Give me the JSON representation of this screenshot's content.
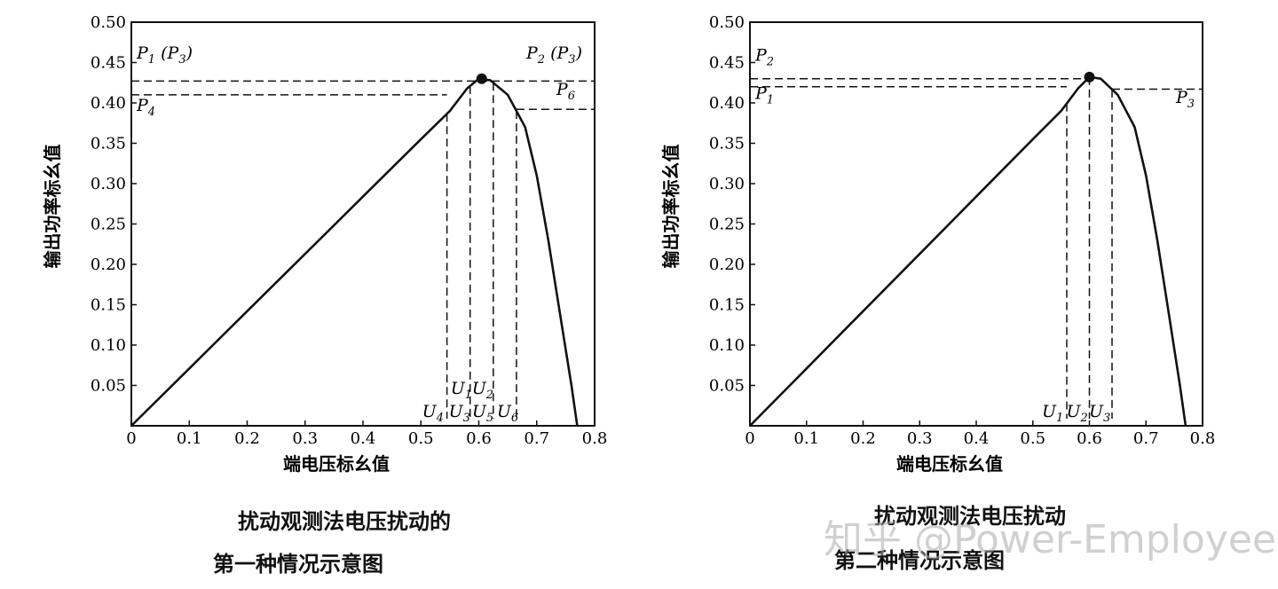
{
  "chart_data": [
    {
      "type": "line",
      "xlabel": "端电压标幺值",
      "ylabel": "输出功率标幺值",
      "xlim": [
        0,
        0.8
      ],
      "ylim": [
        0,
        0.5
      ],
      "x_ticks": [
        "0",
        "0.1",
        "0.2",
        "0.3",
        "0.4",
        "0.5",
        "0.6",
        "0.7",
        "0.8"
      ],
      "y_ticks": [
        "0.05",
        "0.10",
        "0.15",
        "0.20",
        "0.25",
        "0.30",
        "0.35",
        "0.40",
        "0.45",
        "0.50"
      ],
      "curve": [
        [
          0,
          0
        ],
        [
          0.1,
          0.071
        ],
        [
          0.2,
          0.142
        ],
        [
          0.3,
          0.213
        ],
        [
          0.4,
          0.284
        ],
        [
          0.5,
          0.355
        ],
        [
          0.55,
          0.39
        ],
        [
          0.58,
          0.418
        ],
        [
          0.6,
          0.43
        ],
        [
          0.62,
          0.428
        ],
        [
          0.65,
          0.41
        ],
        [
          0.68,
          0.37
        ],
        [
          0.7,
          0.31
        ],
        [
          0.72,
          0.23
        ],
        [
          0.74,
          0.14
        ],
        [
          0.76,
          0.05
        ],
        [
          0.77,
          0
        ]
      ],
      "mpp": {
        "x": 0.605,
        "y": 0.43
      },
      "levels": [
        {
          "y": 0.427,
          "x0": 0.0,
          "x1": 0.8
        },
        {
          "y": 0.41,
          "x0": 0.0,
          "x1": 0.545
        },
        {
          "y": 0.392,
          "x0": 0.665,
          "x1": 0.8
        }
      ],
      "verticals": [
        0.545,
        0.585,
        0.625,
        0.665
      ],
      "point_labels": [
        {
          "pre": "P",
          "sub": "1",
          "mid": " (P",
          "sub2": "3",
          "post": ")",
          "y": 0.455
        },
        {
          "pre": "P",
          "sub": "2",
          "mid": " (P",
          "sub2": "3",
          "post": ")",
          "y": 0.455
        },
        {
          "pre": "P",
          "sub": "4",
          "y": 0.395
        },
        {
          "pre": "P",
          "sub": "6",
          "y": 0.41
        }
      ],
      "u_labels_top": [
        {
          "pre": "U",
          "sub": "1"
        },
        {
          "pre": "U",
          "sub": "2"
        }
      ],
      "u_labels_bottom": [
        {
          "pre": "U",
          "sub": "4"
        },
        {
          "pre": "U",
          "sub": "3"
        },
        {
          "pre": "U",
          "sub": "5"
        },
        {
          "pre": "U",
          "sub": "6"
        }
      ]
    },
    {
      "type": "line",
      "xlabel": "端电压标幺值",
      "ylabel": "输出功率标幺值",
      "xlim": [
        0,
        0.8
      ],
      "ylim": [
        0,
        0.5
      ],
      "x_ticks": [
        "0",
        "0.1",
        "0.2",
        "0.3",
        "0.4",
        "0.5",
        "0.6",
        "0.7",
        "0.8"
      ],
      "y_ticks": [
        "0.05",
        "0.10",
        "0.15",
        "0.20",
        "0.25",
        "0.30",
        "0.35",
        "0.40",
        "0.45",
        "0.50"
      ],
      "curve": [
        [
          0,
          0
        ],
        [
          0.1,
          0.071
        ],
        [
          0.2,
          0.142
        ],
        [
          0.3,
          0.213
        ],
        [
          0.4,
          0.284
        ],
        [
          0.5,
          0.355
        ],
        [
          0.55,
          0.39
        ],
        [
          0.58,
          0.418
        ],
        [
          0.6,
          0.432
        ],
        [
          0.62,
          0.43
        ],
        [
          0.65,
          0.41
        ],
        [
          0.68,
          0.37
        ],
        [
          0.7,
          0.31
        ],
        [
          0.72,
          0.23
        ],
        [
          0.74,
          0.14
        ],
        [
          0.76,
          0.05
        ],
        [
          0.77,
          0
        ]
      ],
      "mpp": {
        "x": 0.6,
        "y": 0.432
      },
      "levels": [
        {
          "y": 0.43,
          "x0": 0.0,
          "x1": 0.6
        },
        {
          "y": 0.42,
          "x0": 0.0,
          "x1": 0.56
        },
        {
          "y": 0.417,
          "x0": 0.64,
          "x1": 0.8
        }
      ],
      "verticals": [
        0.56,
        0.6,
        0.64
      ],
      "point_labels": [
        {
          "pre": "P",
          "sub": "2",
          "y": 0.455
        },
        {
          "pre": "P",
          "sub": "1",
          "y": 0.405
        },
        {
          "pre": "P",
          "sub": "3",
          "y": 0.405
        }
      ],
      "u_labels_top": [],
      "u_labels_bottom": [
        {
          "pre": "U",
          "sub": "1"
        },
        {
          "pre": "U",
          "sub": "2"
        },
        {
          "pre": "U",
          "sub": "3"
        }
      ]
    }
  ],
  "captions": {
    "left_line1": "扰动观测法电压扰动的",
    "left_line2": "第一种情况示意图",
    "right_line1": "扰动观测法电压扰动",
    "right_line2": "第二种情况示意图"
  },
  "watermark": "知乎 @Power-Employee"
}
